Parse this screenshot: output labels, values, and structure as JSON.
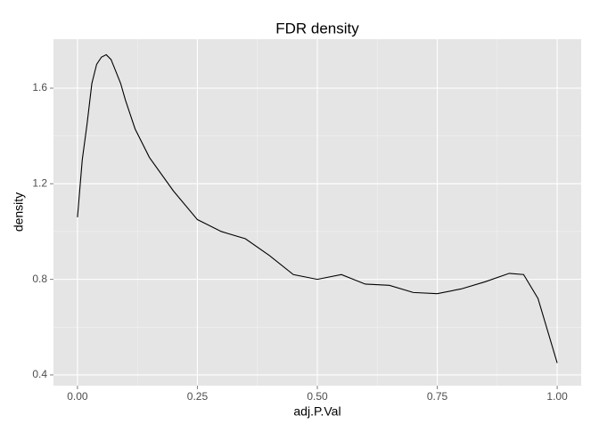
{
  "chart_data": {
    "type": "line",
    "title": "FDR density",
    "x_label": "adj.P.Val",
    "y_label": "density",
    "x": [
      0.0,
      0.01,
      0.02,
      0.03,
      0.04,
      0.05,
      0.06,
      0.07,
      0.08,
      0.09,
      0.1,
      0.12,
      0.15,
      0.2,
      0.25,
      0.3,
      0.35,
      0.4,
      0.45,
      0.5,
      0.55,
      0.6,
      0.65,
      0.7,
      0.75,
      0.8,
      0.85,
      0.9,
      0.93,
      0.96,
      1.0
    ],
    "values": [
      1.06,
      1.3,
      1.45,
      1.62,
      1.7,
      1.73,
      1.74,
      1.72,
      1.67,
      1.62,
      1.55,
      1.43,
      1.31,
      1.17,
      1.05,
      1.0,
      0.97,
      0.9,
      0.82,
      0.8,
      0.82,
      0.78,
      0.775,
      0.745,
      0.74,
      0.76,
      0.79,
      0.825,
      0.82,
      0.72,
      0.45
    ],
    "color": "#000000",
    "xlim": [
      -0.05,
      1.05
    ],
    "ylim": [
      0.355,
      1.805
    ],
    "xticks": [
      {
        "value": 0,
        "label": "0.00"
      },
      {
        "value": 0.25,
        "label": "0.25"
      },
      {
        "value": 0.5,
        "label": "0.50"
      },
      {
        "value": 0.75,
        "label": "0.75"
      },
      {
        "value": 1,
        "label": "1.00"
      }
    ],
    "yticks": [
      0.4,
      0.8,
      1.2,
      1.6
    ],
    "minor_xticks": [
      0.125,
      0.375,
      0.625,
      0.875
    ],
    "minor_yticks": [
      0.6,
      1.0,
      1.4
    ],
    "grid": true
  }
}
